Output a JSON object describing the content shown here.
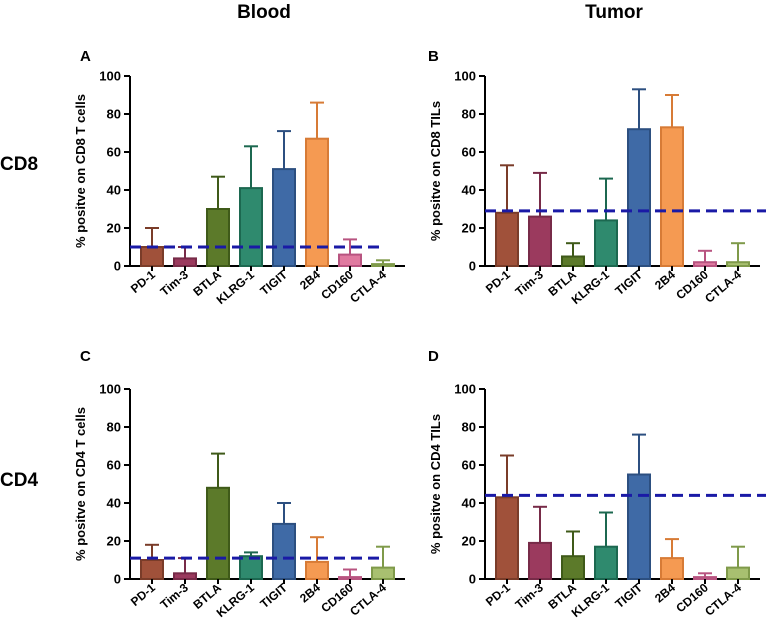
{
  "figure": {
    "col_titles": [
      "Blood",
      "Tumor"
    ],
    "row_labels": [
      "CD8",
      "CD4"
    ]
  },
  "colors": {
    "fills": [
      "#a0513a",
      "#9b3a5e",
      "#5c7a2a",
      "#2f8a6e",
      "#3f6aa6",
      "#f59a52",
      "#e07aa0",
      "#a8c070"
    ],
    "strokes": [
      "#7a3c29",
      "#772b48",
      "#3f5a19",
      "#1c6850",
      "#2c4f80",
      "#d77b36",
      "#b85480",
      "#7f9a4a"
    ],
    "threshold_line": "#1a1aa6"
  },
  "chart_data": [
    {
      "type": "bar",
      "panel": "A",
      "ylabel": "% positve on CD8 T cells",
      "categories": [
        "PD-1",
        "Tim-3",
        "BTLA",
        "KLRG-1",
        "TIGIT",
        "2B4",
        "CD160",
        "CTLA-4"
      ],
      "values": [
        10,
        4,
        30,
        41,
        51,
        67,
        6,
        1
      ],
      "errors": [
        20,
        10,
        47,
        63,
        71,
        86,
        14,
        3
      ],
      "threshold": 10,
      "ylim": [
        0,
        100
      ],
      "yticks": [
        0,
        20,
        40,
        60,
        80,
        100
      ]
    },
    {
      "type": "bar",
      "panel": "B",
      "ylabel": "% positve on CD8 TILs",
      "categories": [
        "PD-1",
        "Tim-3",
        "BTLA",
        "KLRG-1",
        "TIGIT",
        "2B4",
        "CD160",
        "CTLA-4"
      ],
      "values": [
        28,
        26,
        5,
        24,
        72,
        73,
        2,
        2
      ],
      "errors": [
        53,
        49,
        12,
        46,
        93,
        90,
        8,
        12
      ],
      "threshold": 29,
      "ylim": [
        0,
        100
      ],
      "yticks": [
        0,
        20,
        40,
        60,
        80,
        100
      ]
    },
    {
      "type": "bar",
      "panel": "C",
      "ylabel": "%  positve on CD4 T cells",
      "categories": [
        "PD-1",
        "Tim-3",
        "BTLA",
        "KLRG-1",
        "TIGIT",
        "2B4",
        "CD160",
        "CTLA-4"
      ],
      "values": [
        10,
        3,
        48,
        12,
        29,
        9,
        1,
        6
      ],
      "errors": [
        18,
        11,
        66,
        14,
        40,
        22,
        5,
        17
      ],
      "threshold": 11,
      "ylim": [
        0,
        100
      ],
      "yticks": [
        0,
        20,
        40,
        60,
        80,
        100
      ]
    },
    {
      "type": "bar",
      "panel": "D",
      "ylabel": "% positve on CD4 TILs",
      "categories": [
        "PD-1",
        "Tim-3",
        "BTLA",
        "KLRG-1",
        "TIGIT",
        "2B4",
        "CD160",
        "CTLA-4"
      ],
      "values": [
        43,
        19,
        12,
        17,
        55,
        11,
        1,
        6
      ],
      "errors": [
        65,
        38,
        25,
        35,
        76,
        21,
        3,
        17
      ],
      "threshold": 44,
      "ylim": [
        0,
        100
      ],
      "yticks": [
        0,
        20,
        40,
        60,
        80,
        100
      ]
    }
  ]
}
